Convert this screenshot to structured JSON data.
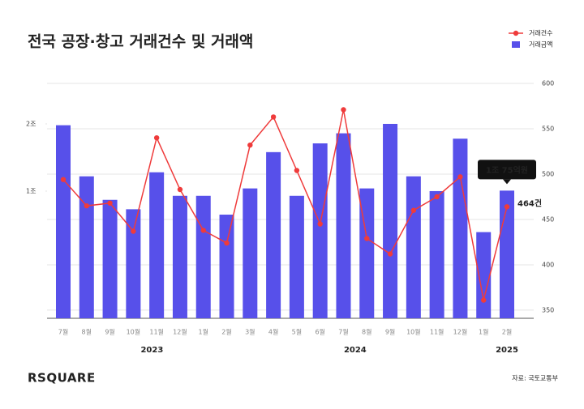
{
  "chart_data": {
    "type": "bar-line",
    "title": "전국 공장·창고 거래건수 및 거래액",
    "categories": [
      "7월",
      "8월",
      "9월",
      "10월",
      "11월",
      "12월",
      "1월",
      "2월",
      "3월",
      "4월",
      "5월",
      "6월",
      "7월",
      "8월",
      "9월",
      "10월",
      "11월",
      "12월",
      "1월",
      "2월"
    ],
    "years": [
      "2023",
      "2024",
      "2025"
    ],
    "series": [
      {
        "name": "거래금액",
        "color": "#5750ea",
        "type": "bar",
        "values": [
          1.98,
          1.22,
          0.87,
          0.73,
          1.28,
          0.93,
          0.93,
          0.65,
          1.04,
          1.58,
          0.93,
          1.71,
          1.86,
          1.04,
          2.0,
          1.22,
          1.0,
          1.78,
          0.39,
          1.0075
        ],
        "value_labels": [
          null,
          null,
          null,
          null,
          null,
          null,
          null,
          null,
          null,
          null,
          null,
          null,
          null,
          null,
          null,
          null,
          null,
          null,
          null,
          "1조 75억원"
        ]
      },
      {
        "name": "거래건수",
        "color": "#ef3b3b",
        "type": "line",
        "axis": "y2",
        "values": [
          494,
          465,
          468,
          437,
          540,
          483,
          438,
          424,
          532,
          563,
          504,
          445,
          571,
          429,
          412,
          460,
          475,
          497,
          361,
          464
        ],
        "value_labels": [
          null,
          null,
          null,
          null,
          null,
          null,
          null,
          null,
          null,
          null,
          null,
          null,
          null,
          null,
          null,
          null,
          null,
          null,
          null,
          "464건"
        ]
      }
    ],
    "ylim": [
      -0.892,
      2.602
    ],
    "yticks": [
      {
        "value": 1,
        "label": "1조"
      },
      {
        "value": 2,
        "label": "2조"
      }
    ],
    "y2lim": [
      341,
      600
    ],
    "y2ticks": [
      350,
      400,
      450,
      500,
      550,
      600
    ],
    "grid": true,
    "legend": "top-right",
    "source": "자료: 국토교통부",
    "brand": "RSQUARE"
  }
}
